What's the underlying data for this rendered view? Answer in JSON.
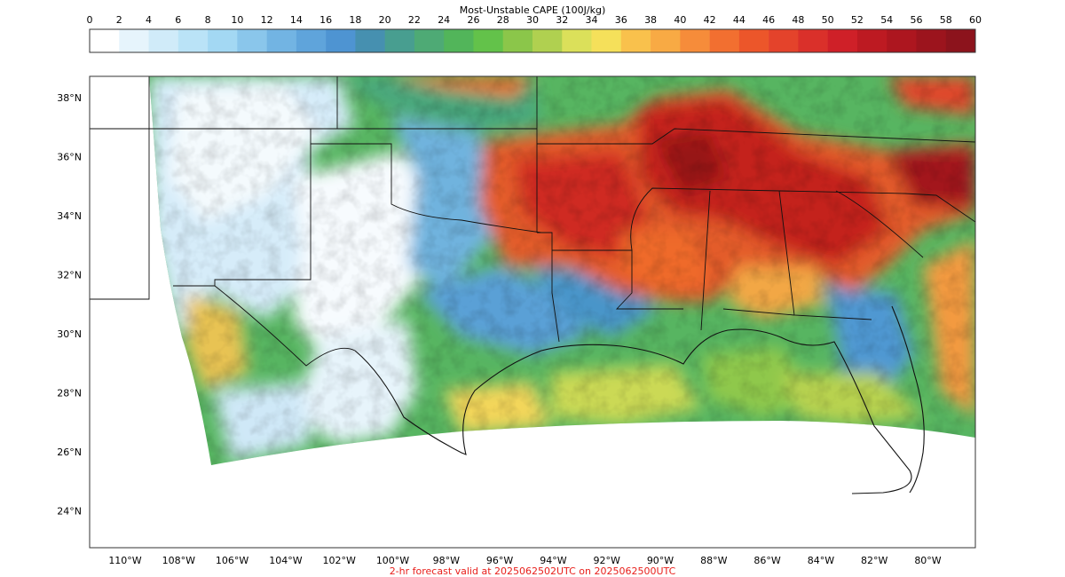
{
  "colorbar": {
    "title": "Most-Unstable CAPE (100J/kg)",
    "ticks": [
      0,
      2,
      4,
      6,
      8,
      10,
      12,
      14,
      16,
      18,
      20,
      22,
      24,
      26,
      28,
      30,
      32,
      34,
      36,
      38,
      40,
      42,
      44,
      46,
      48,
      50,
      52,
      54,
      56,
      58,
      60
    ],
    "colors": [
      "#ffffff",
      "#e6f4fc",
      "#d0ebf9",
      "#bae3f7",
      "#a3d8f3",
      "#8ac6eb",
      "#72b4e3",
      "#5fa4db",
      "#4e94d2",
      "#4690b0",
      "#489e90",
      "#4eaa75",
      "#52b55a",
      "#63c24a",
      "#8bc64a",
      "#b0d050",
      "#dbe05a",
      "#f5e05a",
      "#f9c14c",
      "#f8aa44",
      "#f68c3a",
      "#f26f30",
      "#ec562a",
      "#e4432b",
      "#da302a",
      "#cf2028",
      "#bd1a22",
      "#ad161f",
      "#9c141d",
      "#8c131c"
    ]
  },
  "map": {
    "lat_labels": [
      "38°N",
      "36°N",
      "34°N",
      "32°N",
      "30°N",
      "28°N",
      "26°N",
      "24°N"
    ],
    "lon_labels": [
      "110°W",
      "108°W",
      "106°W",
      "104°W",
      "102°W",
      "100°W",
      "98°W",
      "96°W",
      "94°W",
      "92°W",
      "90°W",
      "88°W",
      "86°W",
      "84°W",
      "82°W",
      "80°W"
    ]
  },
  "footer": {
    "text": "2-hr forecast valid at 2025062502UTC on 2025062500UTC",
    "color": "#e8201c"
  }
}
